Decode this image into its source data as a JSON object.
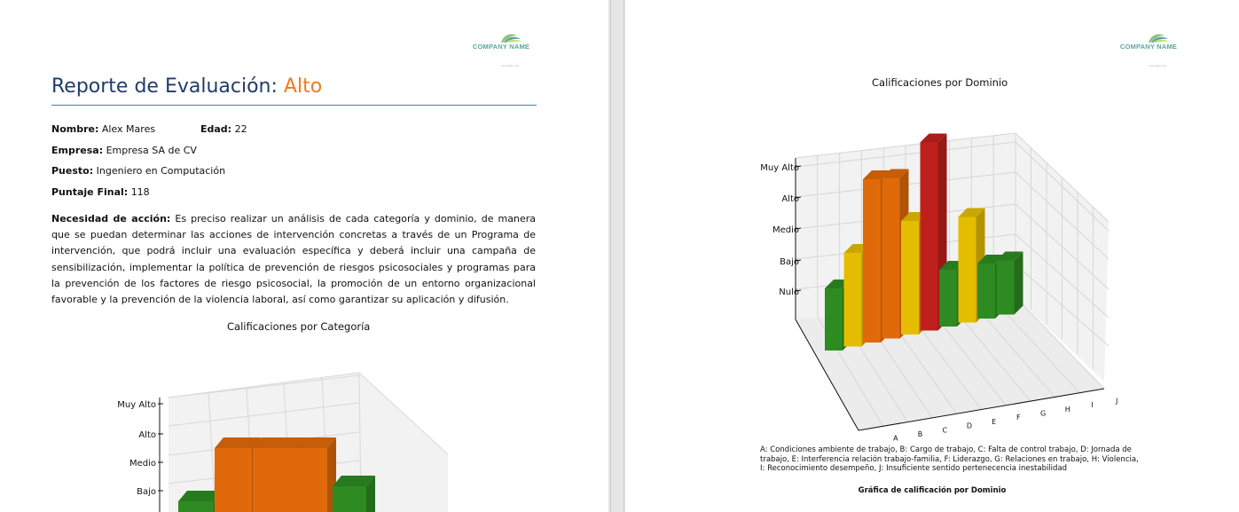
{
  "header": {
    "company_name": "COMPANY NAME",
    "company_tagline": "Insert tagline here"
  },
  "report": {
    "title": "Reporte de Evaluación:",
    "level": "Alto",
    "fields": {
      "name_label": "Nombre:",
      "name_value": "Alex Mares",
      "age_label": "Edad:",
      "age_value": "22",
      "company_label": "Empresa:",
      "company_value": "Empresa SA de CV",
      "position_label": "Puesto:",
      "position_value": "Ingeniero en Computación",
      "score_label": "Puntaje Final:",
      "score_value": "118"
    },
    "need_label": "Necesidad de acción:",
    "need_text": "Es preciso realizar un análisis de cada categoría y dominio, de manera que se puedan determinar las acciones de intervención concretas a través de un Programa de intervención, que podrá incluir una evaluación específica y deberá incluir una campaña de sensibilización, implementar la política de prevención de riesgos psicosociales y programas para la prevención de los factores de riesgo psicosocial, la promoción de un entorno organizacional favorable y la prevención de la violencia laboral, así como garantizar su aplicación y difusión."
  },
  "colors": {
    "verde": "#2e8b22",
    "amarillo": "#e5bd00",
    "naranja": "#e06a0a",
    "rojo": "#c0201c",
    "title_blue": "#1f3c6b",
    "accent_orange": "#f07c1a",
    "rule_blue": "#4f7fa8"
  },
  "chart_data": [
    {
      "type": "bar",
      "title": "Calificaciones por Categoría",
      "y_tick_labels": [
        "Muy Alto",
        "Alto",
        "Medio",
        "Bajo"
      ],
      "values": [
        1,
        3,
        3,
        3,
        2
      ],
      "bar_colors": [
        "verde",
        "naranja",
        "naranja",
        "naranja",
        "verde"
      ]
    },
    {
      "type": "bar",
      "title": "Calificaciones por Dominio",
      "y_tick_labels": [
        "Muy Alto",
        "Alto",
        "Medio",
        "Bajo",
        "Nulo"
      ],
      "y_levels": [
        "Nulo",
        "Bajo",
        "Medio",
        "Alto",
        "Muy Alto"
      ],
      "categories": [
        "A",
        "B",
        "C",
        "D",
        "E",
        "F",
        "G",
        "H",
        "I",
        "J"
      ],
      "values": [
        1,
        2,
        3,
        3,
        2,
        4,
        1,
        2,
        1,
        1
      ],
      "bar_colors": [
        "verde",
        "amarillo",
        "naranja",
        "naranja",
        "amarillo",
        "rojo",
        "verde",
        "amarillo",
        "verde",
        "verde"
      ],
      "legend": "A: Condiciones ambiente de trabajo, B: Cargo de trabajo, C: Falta de control trabajo, D: Jornada de trabajo, E: Interferencia relación trabajo-familia, F: Liderazgo, G: Relaciones en trabajo, H: Violencia, I: Reconocimiento desempeño, J: Insuficiente sentido pertenecencia inestabilidad",
      "caption": "Gráfica de calificación por Dominio"
    }
  ]
}
